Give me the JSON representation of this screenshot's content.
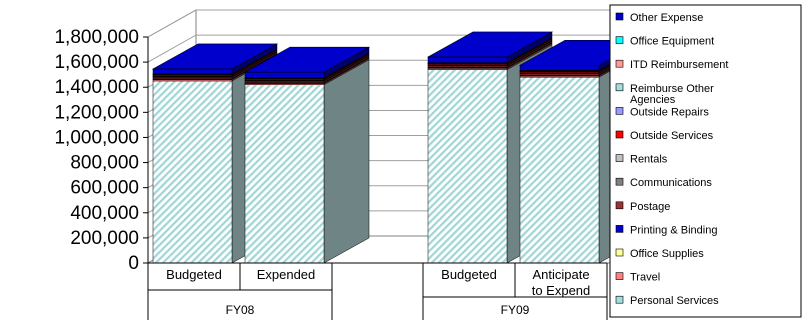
{
  "chart_data": {
    "type": "bar",
    "stacked": true,
    "three_d": true,
    "title": "",
    "xlabel": "",
    "ylabel": "",
    "ylim": [
      0,
      1800000
    ],
    "ytick_step": 200000,
    "ytick_labels": [
      "0",
      "200,000",
      "400,000",
      "600,000",
      "800,000",
      "1,000,000",
      "1,200,000",
      "1,400,000",
      "1,600,000",
      "1,800,000"
    ],
    "grid": true,
    "legend_position": "right",
    "groups": [
      {
        "label": "FY08",
        "categories": [
          "Budgeted",
          "Expended"
        ]
      },
      {
        "label": "FY09",
        "categories": [
          "Budgeted",
          "Anticipate to Expend"
        ]
      }
    ],
    "categories": [
      "Budgeted",
      "Expended",
      "Budgeted",
      "Anticipate to Expend"
    ],
    "series": [
      {
        "name": "Personal Services",
        "color": "#a6dcdc",
        "values": [
          1450000,
          1420000,
          1540000,
          1480000
        ]
      },
      {
        "name": "Travel",
        "color": "#ff8080",
        "values": [
          10000,
          9000,
          10000,
          9000
        ]
      },
      {
        "name": "Office Supplies",
        "color": "#ffff99",
        "values": [
          5000,
          5000,
          5000,
          5000
        ]
      },
      {
        "name": "Printing & Binding",
        "color": "#0000cc",
        "values": [
          3000,
          3000,
          3000,
          3000
        ]
      },
      {
        "name": "Postage",
        "color": "#993333",
        "values": [
          10000,
          10000,
          10000,
          10000
        ]
      },
      {
        "name": "Communications",
        "color": "#808080",
        "values": [
          5000,
          5000,
          5000,
          5000
        ]
      },
      {
        "name": "Rentals",
        "color": "#c0c0c0",
        "values": [
          4000,
          4000,
          4000,
          4000
        ]
      },
      {
        "name": "Outside Services",
        "color": "#ff0000",
        "values": [
          8000,
          8000,
          8000,
          8000
        ]
      },
      {
        "name": "Outside Repairs",
        "color": "#9999ff",
        "values": [
          3000,
          3000,
          3000,
          3000
        ]
      },
      {
        "name": "Reimburse Other Agencies",
        "color": "#a6dcdc",
        "values": [
          3000,
          3000,
          3000,
          3000
        ]
      },
      {
        "name": "ITD Reimbursement",
        "color": "#ff9999",
        "values": [
          3000,
          3000,
          3000,
          3000
        ]
      },
      {
        "name": "Office Equipment",
        "color": "#00ffff",
        "values": [
          2000,
          2000,
          2000,
          2000
        ]
      },
      {
        "name": "Other Expense",
        "color": "#0000cc",
        "values": [
          40000,
          45000,
          45000,
          40000
        ]
      }
    ]
  }
}
